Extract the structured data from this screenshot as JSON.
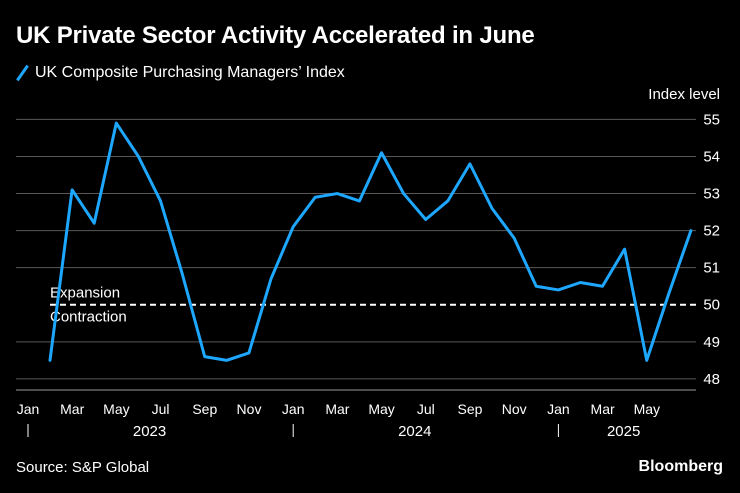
{
  "title": "UK Private Sector Activity Accelerated in June",
  "source": "Source: S&P Global",
  "brand": "Bloomberg",
  "colors": {
    "background": "#000000",
    "series": "#1ea7ff",
    "grid": "#595959",
    "text": "#ffffff",
    "reference": "#ffffff"
  },
  "chart_data": {
    "type": "line",
    "ylabel": "Index level",
    "ylim": [
      47.7,
      55.2
    ],
    "yticks": [
      48,
      49,
      50,
      51,
      52,
      53,
      54,
      55
    ],
    "grid": true,
    "legend_position": "top-left",
    "x": [
      "2023-01",
      "2023-02",
      "2023-03",
      "2023-04",
      "2023-05",
      "2023-06",
      "2023-07",
      "2023-08",
      "2023-09",
      "2023-10",
      "2023-11",
      "2023-12",
      "2024-01",
      "2024-02",
      "2024-03",
      "2024-04",
      "2024-05",
      "2024-06",
      "2024-07",
      "2024-08",
      "2024-09",
      "2024-10",
      "2024-11",
      "2024-12",
      "2025-01",
      "2025-02",
      "2025-03",
      "2025-04",
      "2025-05",
      "2025-06"
    ],
    "xtick_labels": [
      {
        "label": "Jan",
        "index": 0
      },
      {
        "label": "Mar",
        "index": 2
      },
      {
        "label": "May",
        "index": 4
      },
      {
        "label": "Jul",
        "index": 6
      },
      {
        "label": "Sep",
        "index": 8
      },
      {
        "label": "Nov",
        "index": 10
      },
      {
        "label": "Jan",
        "index": 12
      },
      {
        "label": "Mar",
        "index": 14
      },
      {
        "label": "May",
        "index": 16
      },
      {
        "label": "Jul",
        "index": 18
      },
      {
        "label": "Sep",
        "index": 20
      },
      {
        "label": "Nov",
        "index": 22
      },
      {
        "label": "Jan",
        "index": 24
      },
      {
        "label": "Mar",
        "index": 26
      },
      {
        "label": "May",
        "index": 28
      }
    ],
    "year_labels": [
      {
        "label": "2023",
        "start_index": 0,
        "end_index": 11
      },
      {
        "label": "2024",
        "start_index": 12,
        "end_index": 23
      },
      {
        "label": "2025",
        "start_index": 24,
        "end_index": 29
      }
    ],
    "series": [
      {
        "name": "UK Composite Purchasing Managers’ Index",
        "color": "#1ea7ff",
        "values": [
          48.5,
          53.1,
          52.2,
          54.9,
          54.0,
          52.8,
          50.8,
          48.6,
          48.5,
          48.7,
          50.7,
          52.1,
          52.9,
          53.0,
          52.8,
          54.1,
          53.0,
          52.3,
          52.8,
          53.8,
          52.6,
          51.8,
          50.5,
          50.4,
          50.6,
          50.5,
          51.5,
          48.5,
          50.3,
          52.0
        ]
      }
    ],
    "reference_line": {
      "value": 50,
      "above_label": "Expansion",
      "below_label": "Contraction",
      "style": "dashed"
    }
  }
}
